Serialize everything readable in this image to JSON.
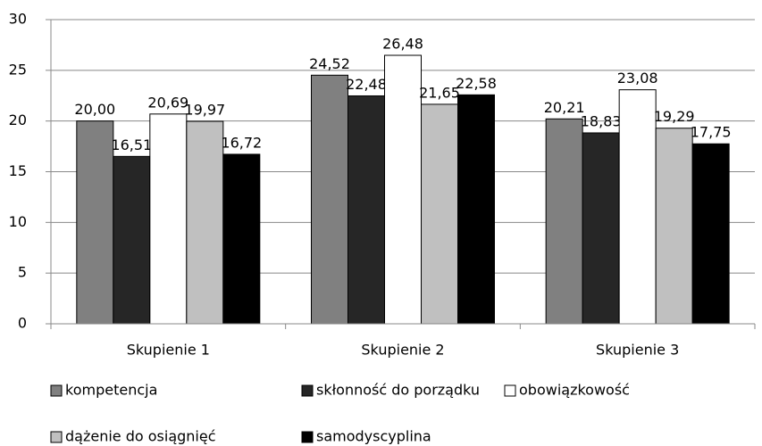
{
  "chart_data": {
    "type": "bar",
    "categories": [
      "Skupienie 1",
      "Skupienie 2",
      "Skupienie 3"
    ],
    "series": [
      {
        "name": "kompetencja",
        "color": "#808080",
        "values": [
          20.0,
          24.52,
          20.21
        ],
        "value_labels": [
          "20,00",
          "24,52",
          "20,21"
        ]
      },
      {
        "name": "skłonność do porządku",
        "color": "#262626",
        "values": [
          16.51,
          22.48,
          18.83
        ],
        "value_labels": [
          "16,51",
          "22,48",
          "18,83"
        ]
      },
      {
        "name": "obowiązkowość",
        "color": "#ffffff",
        "values": [
          20.69,
          26.48,
          23.08
        ],
        "value_labels": [
          "20,69",
          "26,48",
          "23,08"
        ]
      },
      {
        "name": "dążenie do osiągnięć",
        "color": "#c0c0c0",
        "values": [
          19.97,
          21.65,
          19.29
        ],
        "value_labels": [
          "19,97",
          "21,65",
          "19,29"
        ]
      },
      {
        "name": "samodyscyplina",
        "color": "#000000",
        "values": [
          16.72,
          22.58,
          17.75
        ],
        "value_labels": [
          "16,72",
          "22,58",
          "17,75"
        ]
      }
    ],
    "ylim": [
      0,
      30
    ],
    "yticks": [
      0,
      5,
      10,
      15,
      20,
      25,
      30
    ],
    "grid": true,
    "legend": "bottom"
  }
}
